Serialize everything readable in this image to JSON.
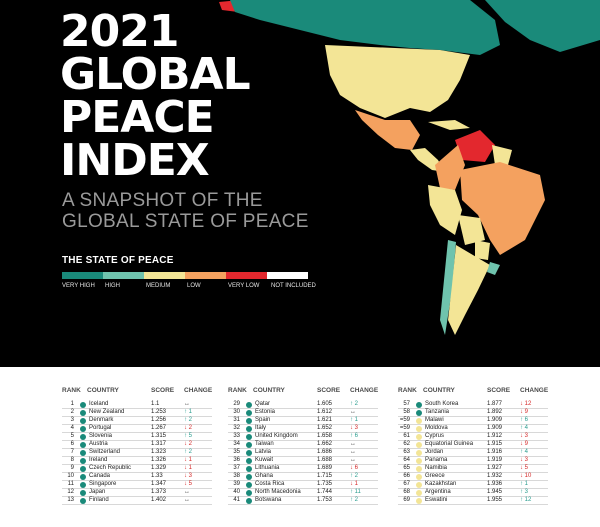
{
  "hero": {
    "title_lines": [
      "2021",
      "GLOBAL",
      "PEACE",
      "INDEX"
    ],
    "subtitle_lines": [
      "A SNAPSHOT OF THE",
      "GLOBAL STATE OF PEACE"
    ]
  },
  "legend": {
    "title": "THE STATE OF PEACE",
    "items": [
      {
        "label": "VERY HIGH",
        "color": "#1a8a7a"
      },
      {
        "label": "HIGH",
        "color": "#6fc3ad"
      },
      {
        "label": "MEDIUM",
        "color": "#f3e596"
      },
      {
        "label": "LOW",
        "color": "#f4a15f"
      },
      {
        "label": "VERY LOW",
        "color": "#e3282e"
      },
      {
        "label": "NOT INCLUDED",
        "color": "#ffffff"
      }
    ]
  },
  "table": {
    "headers": {
      "rank": "RANK",
      "country": "COUNTRY",
      "score": "SCORE",
      "change": "CHANGE"
    },
    "columns": [
      [
        {
          "rank": "1",
          "country": "Iceland",
          "score": "1.1",
          "change": "↔",
          "dir": "same",
          "color": "#1a8a7a"
        },
        {
          "rank": "2",
          "country": "New Zealand",
          "score": "1.253",
          "change": "↑ 1",
          "dir": "up",
          "color": "#1a8a7a"
        },
        {
          "rank": "3",
          "country": "Denmark",
          "score": "1.256",
          "change": "↑ 2",
          "dir": "up",
          "color": "#1a8a7a"
        },
        {
          "rank": "4",
          "country": "Portugal",
          "score": "1.267",
          "change": "↓ 2",
          "dir": "down",
          "color": "#1a8a7a"
        },
        {
          "rank": "5",
          "country": "Slovenia",
          "score": "1.315",
          "change": "↑ 5",
          "dir": "up",
          "color": "#1a8a7a"
        },
        {
          "rank": "6",
          "country": "Austria",
          "score": "1.317",
          "change": "↓ 2",
          "dir": "down",
          "color": "#1a8a7a"
        },
        {
          "rank": "7",
          "country": "Switzerland",
          "score": "1.323",
          "change": "↑ 2",
          "dir": "up",
          "color": "#1a8a7a"
        },
        {
          "rank": "8",
          "country": "Ireland",
          "score": "1.326",
          "change": "↓ 1",
          "dir": "down",
          "color": "#1a8a7a"
        },
        {
          "rank": "9",
          "country": "Czech Republic",
          "score": "1.329",
          "change": "↓ 1",
          "dir": "down",
          "color": "#1a8a7a"
        },
        {
          "rank": "10",
          "country": "Canada",
          "score": "1.33",
          "change": "↓ 3",
          "dir": "down",
          "color": "#1a8a7a"
        },
        {
          "rank": "11",
          "country": "Singapore",
          "score": "1.347",
          "change": "↓ 5",
          "dir": "down",
          "color": "#1a8a7a"
        },
        {
          "rank": "12",
          "country": "Japan",
          "score": "1.373",
          "change": "↔",
          "dir": "same",
          "color": "#1a8a7a"
        },
        {
          "rank": "13",
          "country": "Finland",
          "score": "1.402",
          "change": "↔",
          "dir": "same",
          "color": "#1a8a7a"
        }
      ],
      [
        {
          "rank": "29",
          "country": "Qatar",
          "score": "1.605",
          "change": "↑ 2",
          "dir": "up",
          "color": "#1a8a7a"
        },
        {
          "rank": "30",
          "country": "Estonia",
          "score": "1.612",
          "change": "↔",
          "dir": "same",
          "color": "#1a8a7a"
        },
        {
          "rank": "31",
          "country": "Spain",
          "score": "1.621",
          "change": "↑ 1",
          "dir": "up",
          "color": "#1a8a7a"
        },
        {
          "rank": "32",
          "country": "Italy",
          "score": "1.652",
          "change": "↓ 3",
          "dir": "down",
          "color": "#1a8a7a"
        },
        {
          "rank": "33",
          "country": "United Kingdom",
          "score": "1.658",
          "change": "↑ 6",
          "dir": "up",
          "color": "#1a8a7a"
        },
        {
          "rank": "34",
          "country": "Taiwan",
          "score": "1.662",
          "change": "↔",
          "dir": "same",
          "color": "#1a8a7a"
        },
        {
          "rank": "35",
          "country": "Latvia",
          "score": "1.686",
          "change": "↔",
          "dir": "same",
          "color": "#1a8a7a"
        },
        {
          "rank": "36",
          "country": "Kuwait",
          "score": "1.688",
          "change": "↔",
          "dir": "same",
          "color": "#1a8a7a"
        },
        {
          "rank": "37",
          "country": "Lithuania",
          "score": "1.689",
          "change": "↓ 6",
          "dir": "down",
          "color": "#1a8a7a"
        },
        {
          "rank": "38",
          "country": "Ghana",
          "score": "1.715",
          "change": "↑ 2",
          "dir": "up",
          "color": "#1a8a7a"
        },
        {
          "rank": "39",
          "country": "Costa Rica",
          "score": "1.735",
          "change": "↓ 1",
          "dir": "down",
          "color": "#1a8a7a"
        },
        {
          "rank": "40",
          "country": "North Macedonia",
          "score": "1.744",
          "change": "↑ 11",
          "dir": "up",
          "color": "#1a8a7a"
        },
        {
          "rank": "41",
          "country": "Botswana",
          "score": "1.753",
          "change": "↑ 2",
          "dir": "up",
          "color": "#1a8a7a"
        }
      ],
      [
        {
          "rank": "57",
          "country": "South Korea",
          "score": "1.877",
          "change": "↓ 12",
          "dir": "down",
          "color": "#1a8a7a"
        },
        {
          "rank": "58",
          "country": "Tanzania",
          "score": "1.892",
          "change": "↓ 9",
          "dir": "down",
          "color": "#1a8a7a"
        },
        {
          "rank": "=59",
          "country": "Malawi",
          "score": "1.909",
          "change": "↑ 6",
          "dir": "up",
          "color": "#f3e596"
        },
        {
          "rank": "=59",
          "country": "Moldova",
          "score": "1.909",
          "change": "↑ 4",
          "dir": "up",
          "color": "#f3e596"
        },
        {
          "rank": "61",
          "country": "Cyprus",
          "score": "1.912",
          "change": "↓ 3",
          "dir": "down",
          "color": "#f3e596"
        },
        {
          "rank": "62",
          "country": "Equatorial Guinea",
          "score": "1.915",
          "change": "↓ 9",
          "dir": "down",
          "color": "#f3e596"
        },
        {
          "rank": "63",
          "country": "Jordan",
          "score": "1.916",
          "change": "↑ 4",
          "dir": "up",
          "color": "#f3e596"
        },
        {
          "rank": "64",
          "country": "Panama",
          "score": "1.919",
          "change": "↓ 3",
          "dir": "down",
          "color": "#f3e596"
        },
        {
          "rank": "65",
          "country": "Namibia",
          "score": "1.927",
          "change": "↓ 5",
          "dir": "down",
          "color": "#f3e596"
        },
        {
          "rank": "66",
          "country": "Greece",
          "score": "1.932",
          "change": "↓ 10",
          "dir": "down",
          "color": "#f3e596"
        },
        {
          "rank": "67",
          "country": "Kazakhstan",
          "score": "1.936",
          "change": "↑ 1",
          "dir": "up",
          "color": "#f3e596"
        },
        {
          "rank": "68",
          "country": "Argentina",
          "score": "1.945",
          "change": "↑ 3",
          "dir": "up",
          "color": "#f3e596"
        },
        {
          "rank": "69",
          "country": "Eswatini",
          "score": "1.955",
          "change": "↑ 12",
          "dir": "up",
          "color": "#f3e596"
        }
      ]
    ]
  }
}
